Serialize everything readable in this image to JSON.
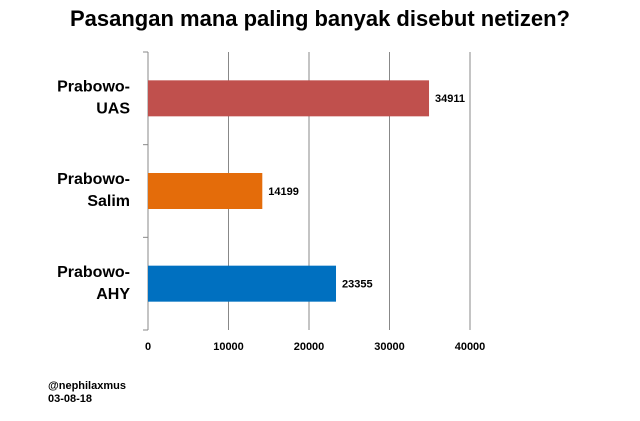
{
  "chart_data": {
    "type": "hbar",
    "title": "Pasangan mana paling banyak disebut netizen?",
    "categories": [
      [
        "Prabowo-",
        "UAS"
      ],
      [
        "Prabowo-",
        "Salim"
      ],
      [
        "Prabowo-",
        "AHY"
      ]
    ],
    "values": [
      34911,
      14199,
      23355
    ],
    "colors": [
      "#c0504d",
      "#e46c0a",
      "#0070c0"
    ],
    "xlim": [
      0,
      40000
    ],
    "xticks": [
      0,
      10000,
      20000,
      30000,
      40000
    ],
    "grid": true,
    "notes": [
      "@nephilaxmus",
      "03-08-18"
    ]
  }
}
